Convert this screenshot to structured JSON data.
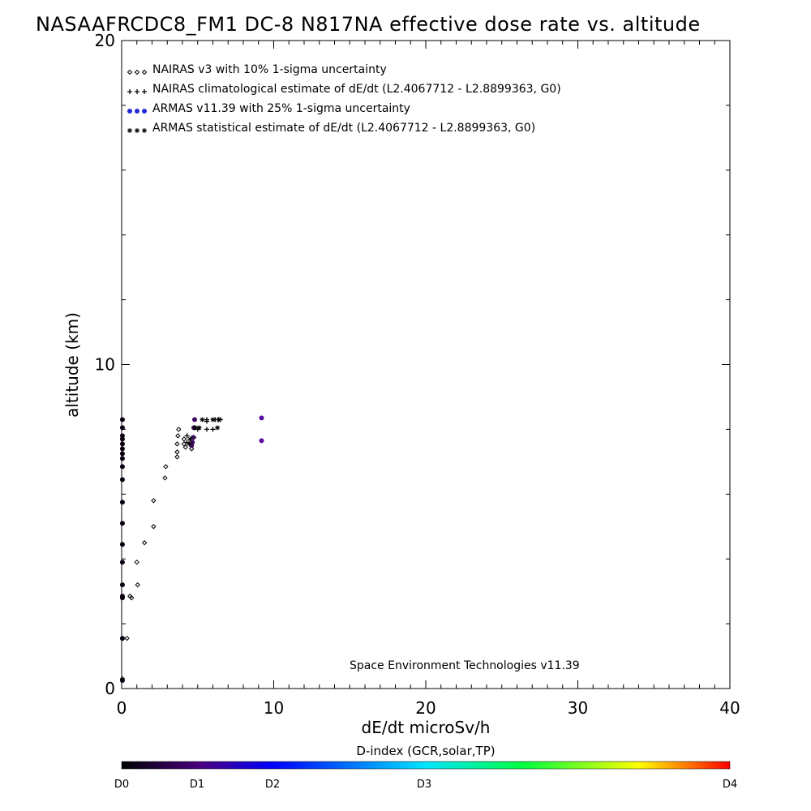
{
  "chart_data": {
    "type": "scatter",
    "title": "NASAAFRCDC8_FM1 DC-8   N817NA effective dose rate vs. altitude",
    "xlabel": "dE/dt microSv/h",
    "ylabel": "altitude (km)",
    "xlim": [
      0,
      40
    ],
    "ylim": [
      0,
      20
    ],
    "x_ticks": [
      "0",
      "10",
      "20",
      "30",
      "40"
    ],
    "y_ticks": [
      "0",
      "10",
      "20"
    ],
    "legend_placement": "top-left",
    "footer_note": "Space Environment Technologies v11.39",
    "series": [
      {
        "name": "NAIRAS v3 with 10% 1-sigma uncertainty",
        "marker": "diamond",
        "color": "#000000",
        "points": [
          [
            0.05,
            0.3
          ],
          [
            0.35,
            1.55
          ],
          [
            0.65,
            2.8
          ],
          [
            0.55,
            2.85
          ],
          [
            1.05,
            3.2
          ],
          [
            1.0,
            3.9
          ],
          [
            1.5,
            4.5
          ],
          [
            2.1,
            5.0
          ],
          [
            2.1,
            5.8
          ],
          [
            2.85,
            6.5
          ],
          [
            2.9,
            6.85
          ],
          [
            3.65,
            7.15
          ],
          [
            3.65,
            7.3
          ],
          [
            3.65,
            7.55
          ],
          [
            3.7,
            7.8
          ],
          [
            3.75,
            8.0
          ],
          [
            4.1,
            7.7
          ],
          [
            4.1,
            7.55
          ],
          [
            4.2,
            7.45
          ],
          [
            4.6,
            7.4
          ],
          [
            4.75,
            7.75
          ],
          [
            4.75,
            8.05
          ]
        ]
      },
      {
        "name": "NAIRAS climatological estimate of dE/dt (L2.4067712 - L2.8899363, G0)",
        "marker": "plus",
        "color": "#000000",
        "points": [
          [
            4.3,
            7.8
          ],
          [
            4.3,
            7.6
          ],
          [
            5.0,
            8.0
          ],
          [
            5.6,
            8.0
          ],
          [
            5.6,
            8.3
          ],
          [
            5.6,
            8.25
          ],
          [
            6.0,
            8.0
          ],
          [
            6.15,
            8.3
          ],
          [
            6.35,
            8.3
          ],
          [
            6.5,
            8.3
          ]
        ]
      },
      {
        "name": "ARMAS v11.39 with 25% 1-sigma uncertainty",
        "marker": "dot",
        "color": "#1f2bd6",
        "points": [
          [
            0.05,
            0.25
          ],
          [
            0.05,
            1.55
          ],
          [
            0.05,
            2.8
          ],
          [
            0.05,
            2.85
          ],
          [
            0.05,
            3.2
          ],
          [
            0.05,
            3.9
          ],
          [
            0.05,
            4.45
          ],
          [
            0.05,
            5.1
          ],
          [
            0.05,
            5.75
          ],
          [
            0.05,
            6.45
          ],
          [
            0.05,
            6.85
          ],
          [
            0.05,
            7.1
          ],
          [
            0.05,
            7.25
          ],
          [
            0.05,
            7.4
          ],
          [
            0.05,
            7.55
          ],
          [
            0.05,
            7.7
          ],
          [
            0.05,
            7.8
          ],
          [
            0.05,
            8.05
          ],
          [
            0.05,
            8.3
          ],
          [
            4.6,
            7.5
          ],
          [
            4.65,
            7.6
          ],
          [
            4.7,
            7.75
          ],
          [
            4.75,
            8.05
          ],
          [
            4.8,
            8.3
          ],
          [
            9.2,
            7.65
          ],
          [
            9.2,
            8.35
          ]
        ]
      },
      {
        "name": "ARMAS statistical estimate of dE/dt (L2.4067712 - L2.8899363, G0)",
        "marker": "asterisk",
        "color": "#000000",
        "points": [
          [
            4.45,
            7.55
          ],
          [
            4.5,
            7.7
          ],
          [
            4.85,
            8.05
          ],
          [
            5.1,
            8.05
          ],
          [
            5.3,
            8.3
          ],
          [
            6.0,
            8.3
          ],
          [
            6.3,
            8.05
          ],
          [
            6.4,
            8.3
          ]
        ]
      }
    ],
    "colorbar": {
      "title": "D-index (GCR,solar,TP)",
      "labels": [
        "D0",
        "D1",
        "D2",
        "D3",
        "D4"
      ],
      "colors": [
        "#000000",
        "#4a0080",
        "#0000ff",
        "#00e5ff",
        "#00ff40",
        "#ffff00",
        "#ff0000"
      ]
    }
  }
}
